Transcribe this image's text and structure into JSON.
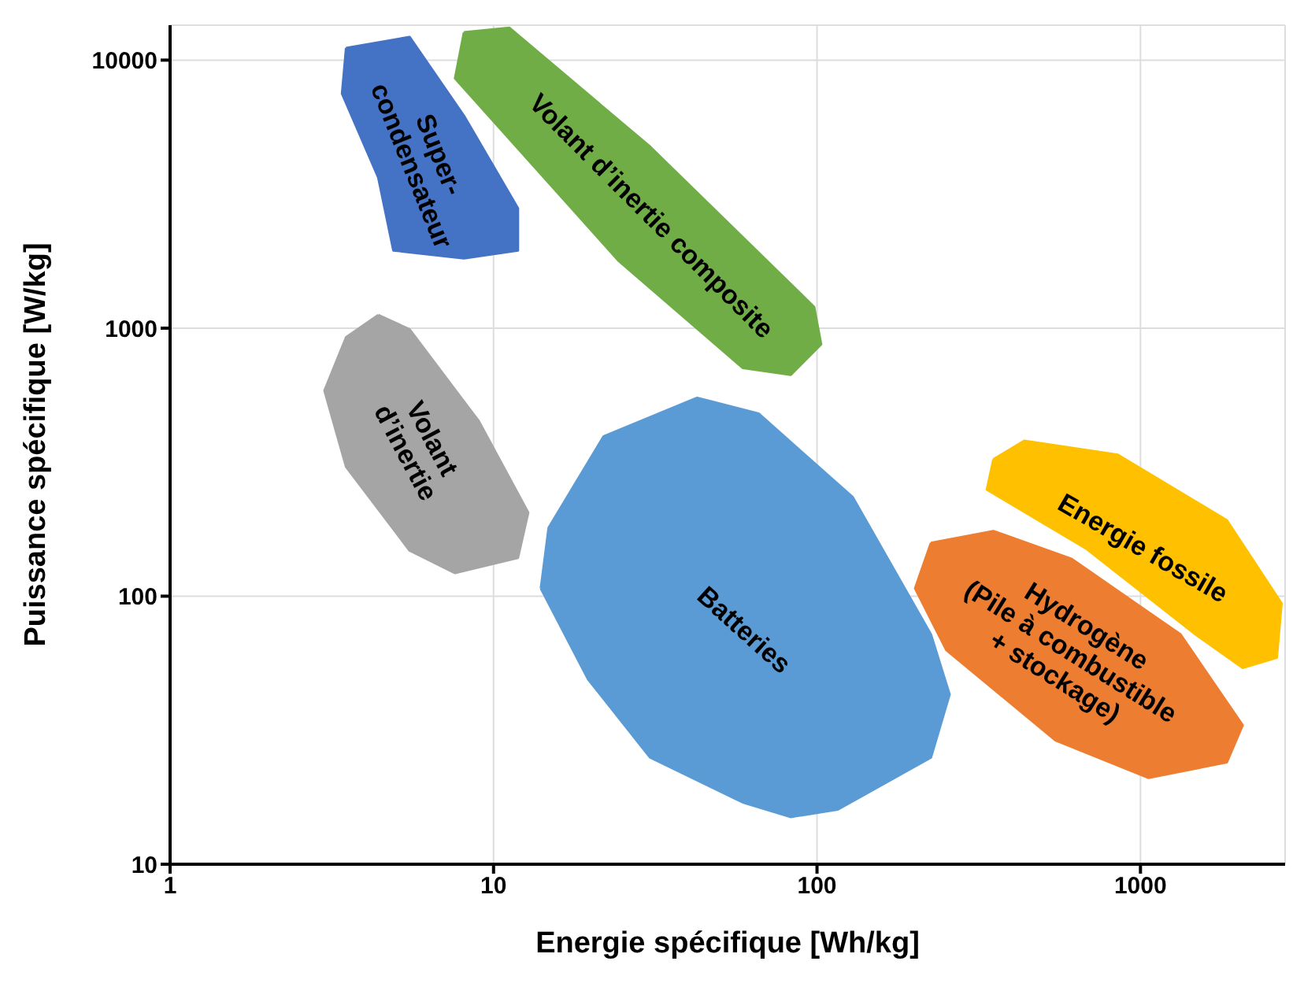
{
  "chart_data": {
    "type": "area",
    "xlabel": "Energie spécifique [Wh/kg]",
    "ylabel": "Puissance spécifique [W/kg]",
    "log": "xy",
    "grid": true,
    "marker": "none",
    "xlim": [
      1,
      2800
    ],
    "xticks": [
      1,
      10,
      100,
      1000
    ],
    "ylim": [
      10,
      13500
    ],
    "yticks": [
      10,
      100,
      1000,
      10000
    ],
    "series": [
      {
        "name": "Super-condensateur",
        "color": "#4472c4",
        "x": [
          3.5,
          5.5,
          8.1,
          11.9,
          11.9,
          8.1,
          4.9,
          4.4,
          3.4
        ],
        "values": [
          11100,
          12200,
          6200,
          2800,
          1950,
          1820,
          1950,
          3650,
          7500
        ]
      },
      {
        "name": "Volant d’inertie composite",
        "color": "#70ad47",
        "x": [
          8.1,
          11.2,
          30.5,
          98,
          103,
          83,
          59,
          24.4,
          7.6
        ],
        "values": [
          12700,
          13200,
          4750,
          1200,
          870,
          670,
          710,
          1780,
          8550
        ]
      },
      {
        "name": "Volant d’inertie",
        "color": "#a5a5a5",
        "x": [
          4.4,
          5.5,
          9.0,
          12.8,
          11.9,
          7.6,
          5.5,
          3.5,
          3.0,
          3.5
        ],
        "values": [
          1120,
          990,
          450,
          205,
          139,
          122,
          148,
          304,
          585,
          925
        ]
      },
      {
        "name": "Batteries",
        "color": "#5b9bd5",
        "x": [
          14,
          14.8,
          21.9,
          42.6,
          66,
          129,
          225,
          257,
          225,
          116,
          83,
          59,
          30.5,
          19.6
        ],
        "values": [
          107,
          180,
          395,
          550,
          480,
          234,
          72,
          43,
          25,
          16,
          15,
          17,
          25,
          49
        ]
      },
      {
        "name": "Energie fossile",
        "color": "#ffc000",
        "x": [
          351,
          437,
          851,
          1850,
          2730,
          2640,
          2070,
          1480,
          682,
          335
        ],
        "values": [
          324,
          380,
          337,
          192,
          94,
          59,
          54,
          72,
          150,
          250
        ]
      },
      {
        "name": "Hydrogène (Pile à combustible + stockage)",
        "color": "#ed7d31",
        "x": [
          225,
          351,
          611,
          1330,
          2070,
          1850,
          1060,
          546,
          251,
          201
        ],
        "values": [
          158,
          175,
          138,
          72,
          33,
          24,
          21,
          29,
          63,
          107
        ]
      }
    ]
  }
}
